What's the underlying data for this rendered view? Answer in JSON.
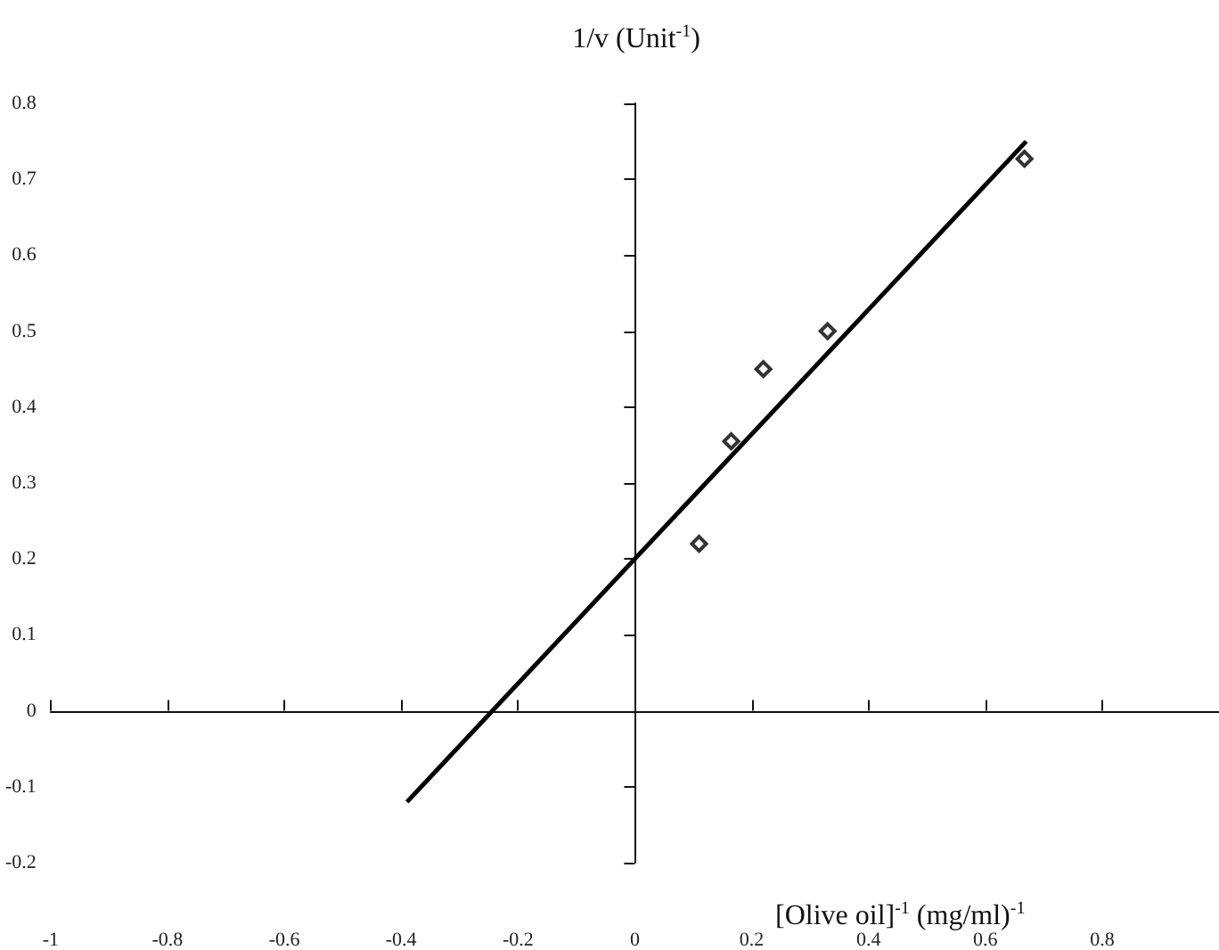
{
  "chart_data": {
    "type": "scatter",
    "xlabel": "[Olive oil]$^{-1}$ (mg/ml)$^{-1}$",
    "ylabel": "1/v (Unit$^{-1}$)",
    "marker": "diamond",
    "xlim": [
      -1,
      1
    ],
    "xticks": [
      -1,
      -0.8,
      -0.6,
      -0.4,
      -0.2,
      0,
      0.2,
      0.4,
      0.6,
      0.8
    ],
    "ylim": [
      -0.2,
      0.8
    ],
    "yticks": [
      -0.2,
      -0.1,
      0,
      0.1,
      0.2,
      0.3,
      0.4,
      0.5,
      0.6,
      0.7,
      0.8
    ],
    "series": [
      {
        "color": "#000000",
        "x": [
          0.11,
          0.165,
          0.22,
          0.33,
          0.667
        ],
        "values": [
          0.22,
          0.355,
          0.45,
          0.5,
          0.727
        ]
      },
      {
        "type": "line",
        "color": "#000000",
        "line_style": "solid",
        "marker": "none",
        "x": [
          -0.39,
          0.67
        ],
        "values": [
          -0.12,
          0.75
        ]
      }
    ]
  }
}
